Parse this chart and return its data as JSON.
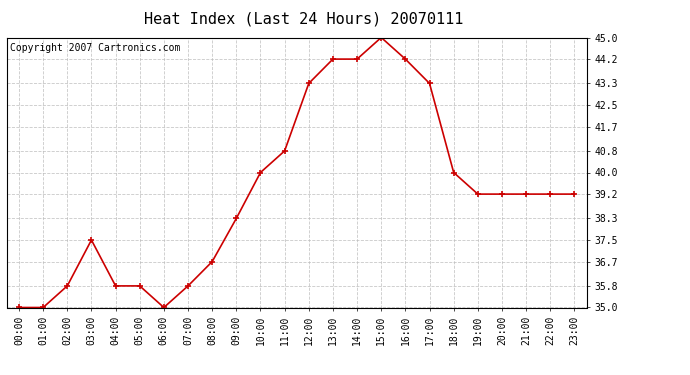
{
  "title": "Heat Index (Last 24 Hours) 20070111",
  "copyright_text": "Copyright 2007 Cartronics.com",
  "x_labels": [
    "00:00",
    "01:00",
    "02:00",
    "03:00",
    "04:00",
    "05:00",
    "06:00",
    "07:00",
    "08:00",
    "09:00",
    "10:00",
    "11:00",
    "12:00",
    "13:00",
    "14:00",
    "15:00",
    "16:00",
    "17:00",
    "18:00",
    "19:00",
    "20:00",
    "21:00",
    "22:00",
    "23:00"
  ],
  "y_values": [
    35.0,
    35.0,
    35.8,
    37.5,
    35.8,
    35.8,
    35.0,
    35.8,
    36.7,
    38.3,
    40.0,
    40.8,
    43.3,
    44.2,
    44.2,
    45.0,
    44.2,
    43.3,
    40.0,
    39.2,
    39.2,
    39.2,
    39.2,
    39.2
  ],
  "y_ticks": [
    35.0,
    35.8,
    36.7,
    37.5,
    38.3,
    39.2,
    40.0,
    40.8,
    41.7,
    42.5,
    43.3,
    44.2,
    45.0
  ],
  "ylim": [
    35.0,
    45.0
  ],
  "line_color": "#cc0000",
  "marker": "+",
  "marker_size": 5,
  "marker_color": "#cc0000",
  "bg_color": "#ffffff",
  "plot_bg_color": "#ffffff",
  "grid_color": "#bbbbbb",
  "grid_style": "--",
  "title_fontsize": 11,
  "tick_fontsize": 7,
  "copyright_fontsize": 7
}
